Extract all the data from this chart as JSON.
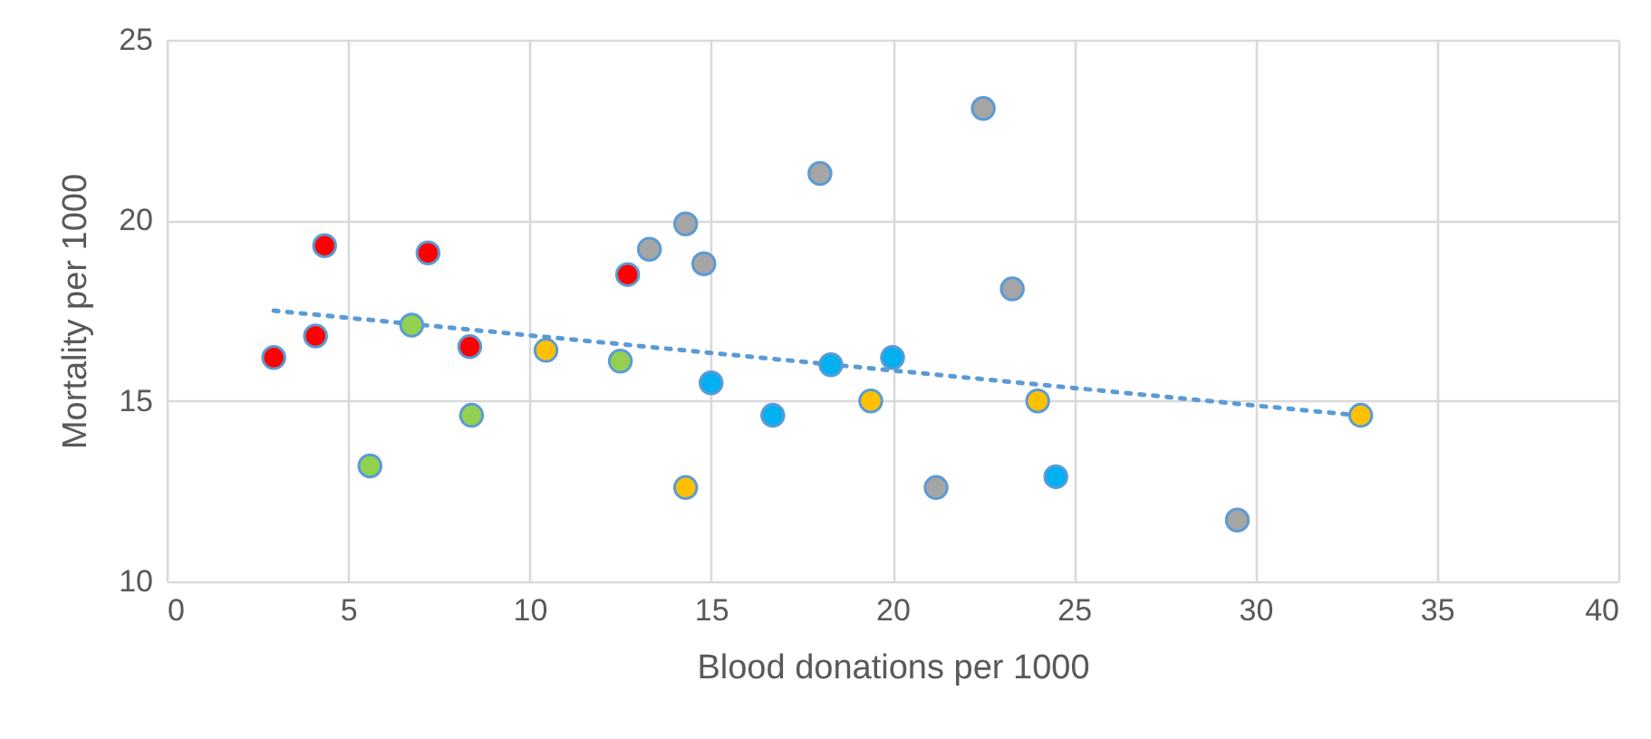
{
  "chart_data": {
    "type": "scatter",
    "xlabel": "Blood donations per 1000",
    "ylabel": "Mortality per 1000",
    "xlim": [
      0,
      40
    ],
    "xticks": [
      0,
      5,
      10,
      15,
      20,
      25,
      30,
      35,
      40
    ],
    "ylim": [
      10,
      25
    ],
    "yticks": [
      10,
      15,
      20,
      25
    ],
    "grid": true,
    "marker": "circle",
    "series": [
      {
        "color": "#ff0000",
        "x": [
          2.95,
          4.1,
          4.35,
          7.2,
          8.35,
          12.7
        ],
        "values": [
          16.2,
          16.8,
          19.3,
          19.1,
          16.5,
          18.5
        ]
      },
      {
        "color": "#92d050",
        "x": [
          5.6,
          6.75,
          8.4,
          12.5
        ],
        "values": [
          13.2,
          17.1,
          14.6,
          16.1
        ]
      },
      {
        "color": "#ffc000",
        "x": [
          10.45,
          14.3,
          19.4,
          24.0,
          32.9
        ],
        "values": [
          16.4,
          12.6,
          15.0,
          15.0,
          14.6
        ]
      },
      {
        "color": "#a5a5a5",
        "x": [
          13.3,
          14.3,
          14.8,
          18.0,
          22.5,
          23.3,
          21.2,
          29.5
        ],
        "values": [
          19.2,
          19.9,
          18.8,
          21.3,
          23.1,
          18.1,
          12.6,
          11.7
        ]
      },
      {
        "color": "#00b0f0",
        "x": [
          15.0,
          16.7,
          18.3,
          20.0,
          24.5
        ],
        "values": [
          15.5,
          14.6,
          16.0,
          16.2,
          12.9
        ]
      },
      {
        "type": "line",
        "color": "#5b9bd5",
        "line_style": "dotted",
        "marker": "none",
        "x": [
          2.95,
          32.8
        ],
        "values": [
          17.5,
          14.6
        ]
      }
    ]
  }
}
